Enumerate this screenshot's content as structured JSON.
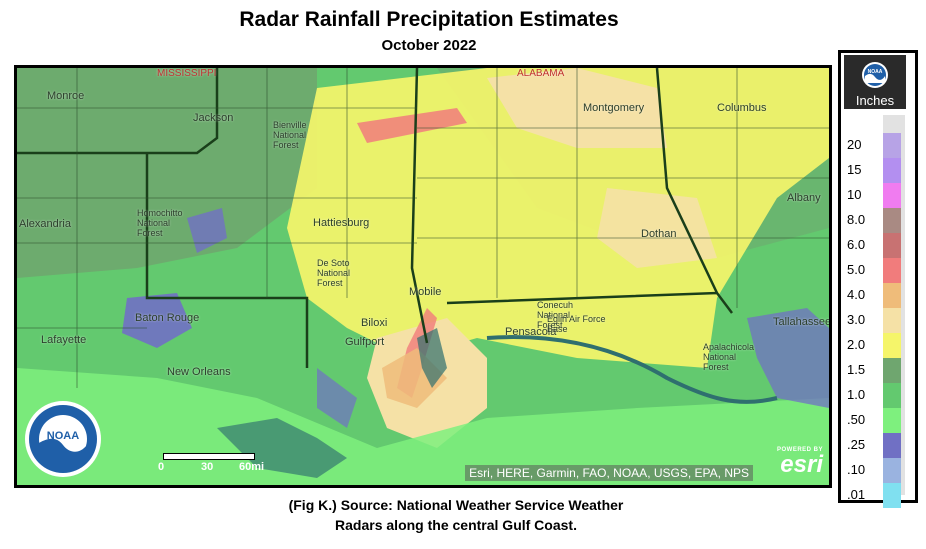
{
  "header": {
    "title": "Radar Rainfall Precipitation Estimates",
    "subtitle": "October 2022"
  },
  "map": {
    "place_labels": [
      "Monroe",
      "Jackson",
      "Montgomery",
      "Columbus",
      "Alexandria",
      "Hattiesburg",
      "Dothan",
      "Albany",
      "Baton Rouge",
      "Lafayette",
      "Biloxi",
      "Gulfport",
      "Mobile",
      "Pensacola",
      "New Orleans",
      "Tallahassee",
      "De Soto National Forest",
      "Apalachicola National Forest",
      "Homochitto National Forest",
      "Bienville National Forest",
      "Conecuh National Forest",
      "Eglin Air Force Base"
    ],
    "state_labels": [
      "MISSISSIPPI",
      "ALABAMA"
    ],
    "attribution": "Esri, HERE, Garmin, FAO, NOAA, USGS, EPA, NPS",
    "esri_powered_by": "POWERED BY",
    "esri_wordmark": "esri",
    "scalebar_labels": [
      "0",
      "30",
      "60mi"
    ],
    "seal_text": "NOAA"
  },
  "legend": {
    "units": "Inches",
    "logo_text": "NOAA",
    "classes": [
      {
        "label": "20",
        "color": "#b7a3e6"
      },
      {
        "label": "15",
        "color": "#b38ff0"
      },
      {
        "label": "10",
        "color": "#f07cf0"
      },
      {
        "label": "8.0",
        "color": "#a98a83"
      },
      {
        "label": "6.0",
        "color": "#c87272"
      },
      {
        "label": "5.0",
        "color": "#f17c7c"
      },
      {
        "label": "4.0",
        "color": "#efbc7a"
      },
      {
        "label": "3.0",
        "color": "#f5e1a6"
      },
      {
        "label": "2.0",
        "color": "#f5f56a"
      },
      {
        "label": "1.5",
        "color": "#6fa66f"
      },
      {
        "label": "1.0",
        "color": "#63c96f"
      },
      {
        "label": ".50",
        "color": "#7ef07e"
      },
      {
        "label": ".25",
        "color": "#7070c4"
      },
      {
        "label": ".10",
        "color": "#9ab3e0"
      },
      {
        "label": ".01",
        "color": "#80e0f0"
      }
    ]
  },
  "caption": {
    "line1": "(Fig K.) Source: National Weather Service Weather",
    "line2": "Radars along the central Gulf Coast."
  }
}
